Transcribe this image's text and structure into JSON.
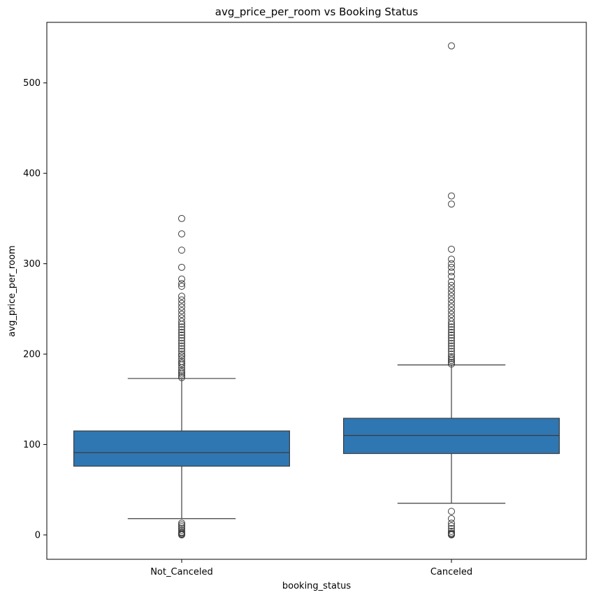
{
  "chart_data": {
    "type": "box",
    "title": "avg_price_per_room vs Booking Status",
    "xlabel": "booking_status",
    "ylabel": "avg_price_per_room",
    "ylim": [
      -27,
      567
    ],
    "yticks": [
      0,
      100,
      200,
      300,
      400,
      500
    ],
    "grid": false,
    "box_color": "#2f77b3",
    "categories": [
      "Not_Canceled",
      "Canceled"
    ],
    "boxes": [
      {
        "category": "Not_Canceled",
        "q1": 76,
        "median": 91,
        "q3": 115,
        "whisker_low": 18,
        "whisker_high": 173,
        "outliers": [
          0,
          0.5,
          1,
          2,
          3,
          5,
          7,
          9,
          11,
          13,
          174,
          176,
          178,
          180,
          182,
          185,
          188,
          190,
          192,
          195,
          198,
          200,
          203,
          206,
          209,
          212,
          215,
          218,
          221,
          224,
          227,
          230,
          233,
          236,
          240,
          244,
          248,
          252,
          256,
          260,
          264,
          275,
          278,
          283,
          296,
          315,
          333,
          350
        ]
      },
      {
        "category": "Canceled",
        "q1": 90,
        "median": 110,
        "q3": 129,
        "whisker_low": 35,
        "whisker_high": 188,
        "outliers": [
          0,
          0.5,
          1,
          2,
          4,
          7,
          10,
          13,
          18,
          26,
          189,
          191,
          193,
          195,
          197,
          200,
          203,
          206,
          209,
          212,
          215,
          218,
          221,
          224,
          227,
          230,
          233,
          236,
          240,
          244,
          248,
          252,
          256,
          260,
          264,
          268,
          272,
          276,
          280,
          286,
          291,
          296,
          300,
          305,
          316,
          366,
          375,
          541
        ]
      }
    ]
  }
}
